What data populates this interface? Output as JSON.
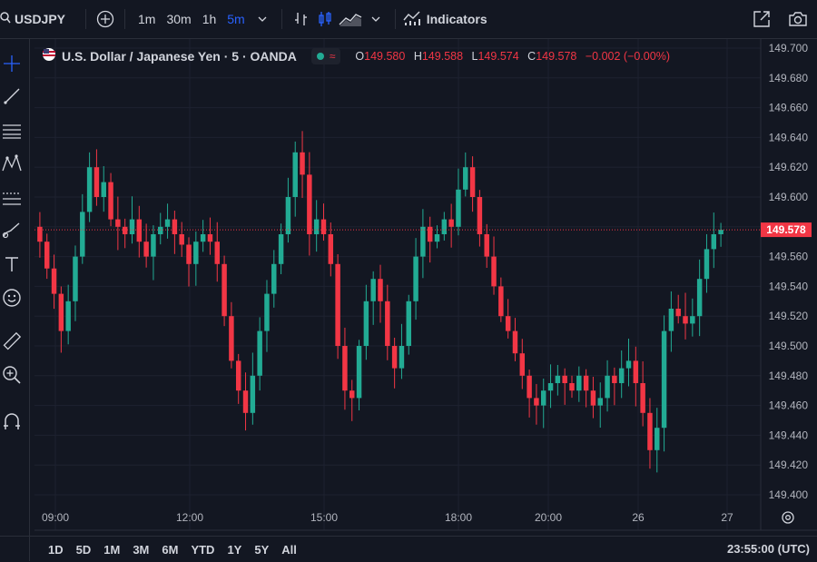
{
  "toolbar": {
    "symbol": "USDJPY",
    "intervals": [
      "1m",
      "30m",
      "1h",
      "5m"
    ],
    "active_interval": "5m",
    "indicators_label": "Indicators"
  },
  "legend": {
    "title": "U.S. Dollar / Japanese Yen · 5 · OANDA",
    "open_label": "O",
    "open": "149.580",
    "high_label": "H",
    "high": "149.588",
    "low_label": "L",
    "low": "149.574",
    "close_label": "C",
    "close": "149.578",
    "change": "−0.002 (−0.00%)"
  },
  "bottom": {
    "ranges": [
      "1D",
      "5D",
      "1M",
      "3M",
      "6M",
      "YTD",
      "1Y",
      "5Y",
      "All"
    ],
    "clock": "23:55:00 (UTC)"
  },
  "colors": {
    "up": "#22ab94",
    "down": "#f23645",
    "background": "#131722",
    "grid": "#1e2230",
    "accent": "#2962ff"
  },
  "icons": [
    "search-icon",
    "add-compare-icon",
    "chevron-down-icon",
    "bar-style-icon",
    "candle-style-icon",
    "area-style-icon",
    "indicators-icon",
    "fullscreen-icon",
    "camera-icon",
    "crosshair-icon",
    "trendline-icon",
    "fib-icon",
    "pattern-icon",
    "measure-icon",
    "brush-icon",
    "text-icon",
    "emoji-icon",
    "ruler-icon",
    "zoom-in-icon",
    "magnet-icon",
    "settings-icon"
  ],
  "chart_data": {
    "type": "candlestick",
    "title": "U.S. Dollar / Japanese Yen · 5 · OANDA",
    "ylim": [
      149.39,
      149.705
    ],
    "y_ticks": [
      "149.700",
      "149.680",
      "149.660",
      "149.640",
      "149.620",
      "149.600",
      "149.580",
      "149.560",
      "149.540",
      "149.520",
      "149.500",
      "149.480",
      "149.460",
      "149.440",
      "149.420",
      "149.400"
    ],
    "x_tick_labels": [
      "09:00",
      "12:00",
      "15:00",
      "18:00",
      "20:00",
      "26",
      "27"
    ],
    "last_price": "149.578",
    "grid": true,
    "series": [
      {
        "name": "close",
        "values": [
          149.57,
          149.552,
          149.535,
          149.51,
          149.53,
          149.56,
          149.59,
          149.62,
          149.6,
          149.61,
          149.585,
          149.58,
          149.575,
          149.585,
          149.57,
          149.56,
          149.575,
          149.58,
          149.585,
          149.575,
          149.568,
          149.555,
          149.57,
          149.575,
          149.57,
          149.555,
          149.52,
          149.49,
          149.47,
          149.455,
          149.48,
          149.51,
          149.535,
          149.555,
          149.575,
          149.6,
          149.63,
          149.615,
          149.575,
          149.585,
          149.575,
          149.555,
          149.5,
          149.47,
          149.465,
          149.5,
          149.53,
          149.545,
          149.53,
          149.5,
          149.485,
          149.5,
          149.53,
          149.56,
          149.58,
          149.57,
          149.575,
          149.585,
          149.58,
          149.605,
          149.62,
          149.6,
          149.575,
          149.56,
          149.54,
          149.52,
          149.51,
          149.495,
          149.48,
          149.465,
          149.46,
          149.47,
          149.475,
          149.48,
          149.475,
          149.47,
          149.48,
          149.47,
          149.46,
          149.465,
          149.48,
          149.475,
          149.485,
          149.49,
          149.475,
          149.455,
          149.43,
          149.445,
          149.51,
          149.525,
          149.52,
          149.515,
          149.52,
          149.545,
          149.565,
          149.575,
          149.578
        ]
      }
    ]
  }
}
